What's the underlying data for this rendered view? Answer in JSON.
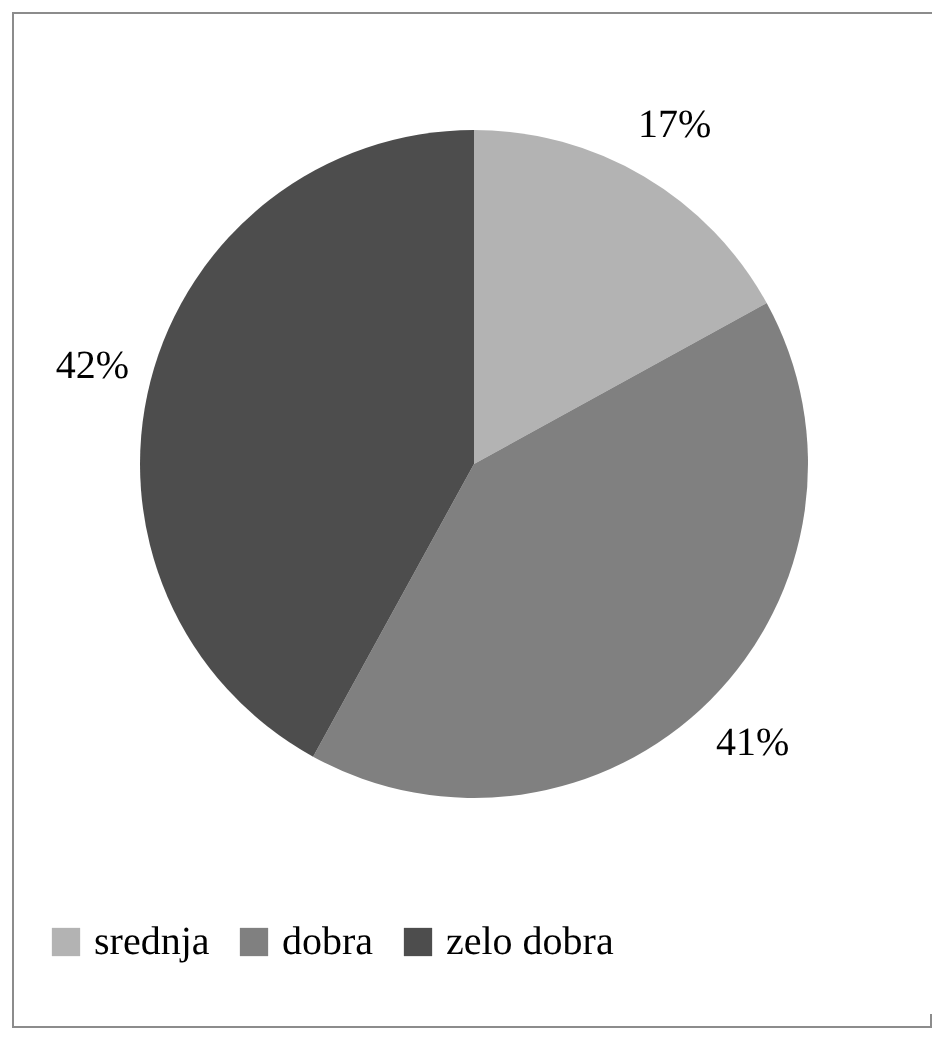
{
  "chart_data": {
    "type": "pie",
    "categories": [
      "srednja",
      "dobra",
      "zelo dobra"
    ],
    "values": [
      17,
      41,
      42
    ],
    "colors": [
      "#b3b3b3",
      "#808080",
      "#4d4d4d"
    ],
    "value_labels": [
      "17%",
      "41%",
      "42%"
    ],
    "legend": "bottom"
  }
}
